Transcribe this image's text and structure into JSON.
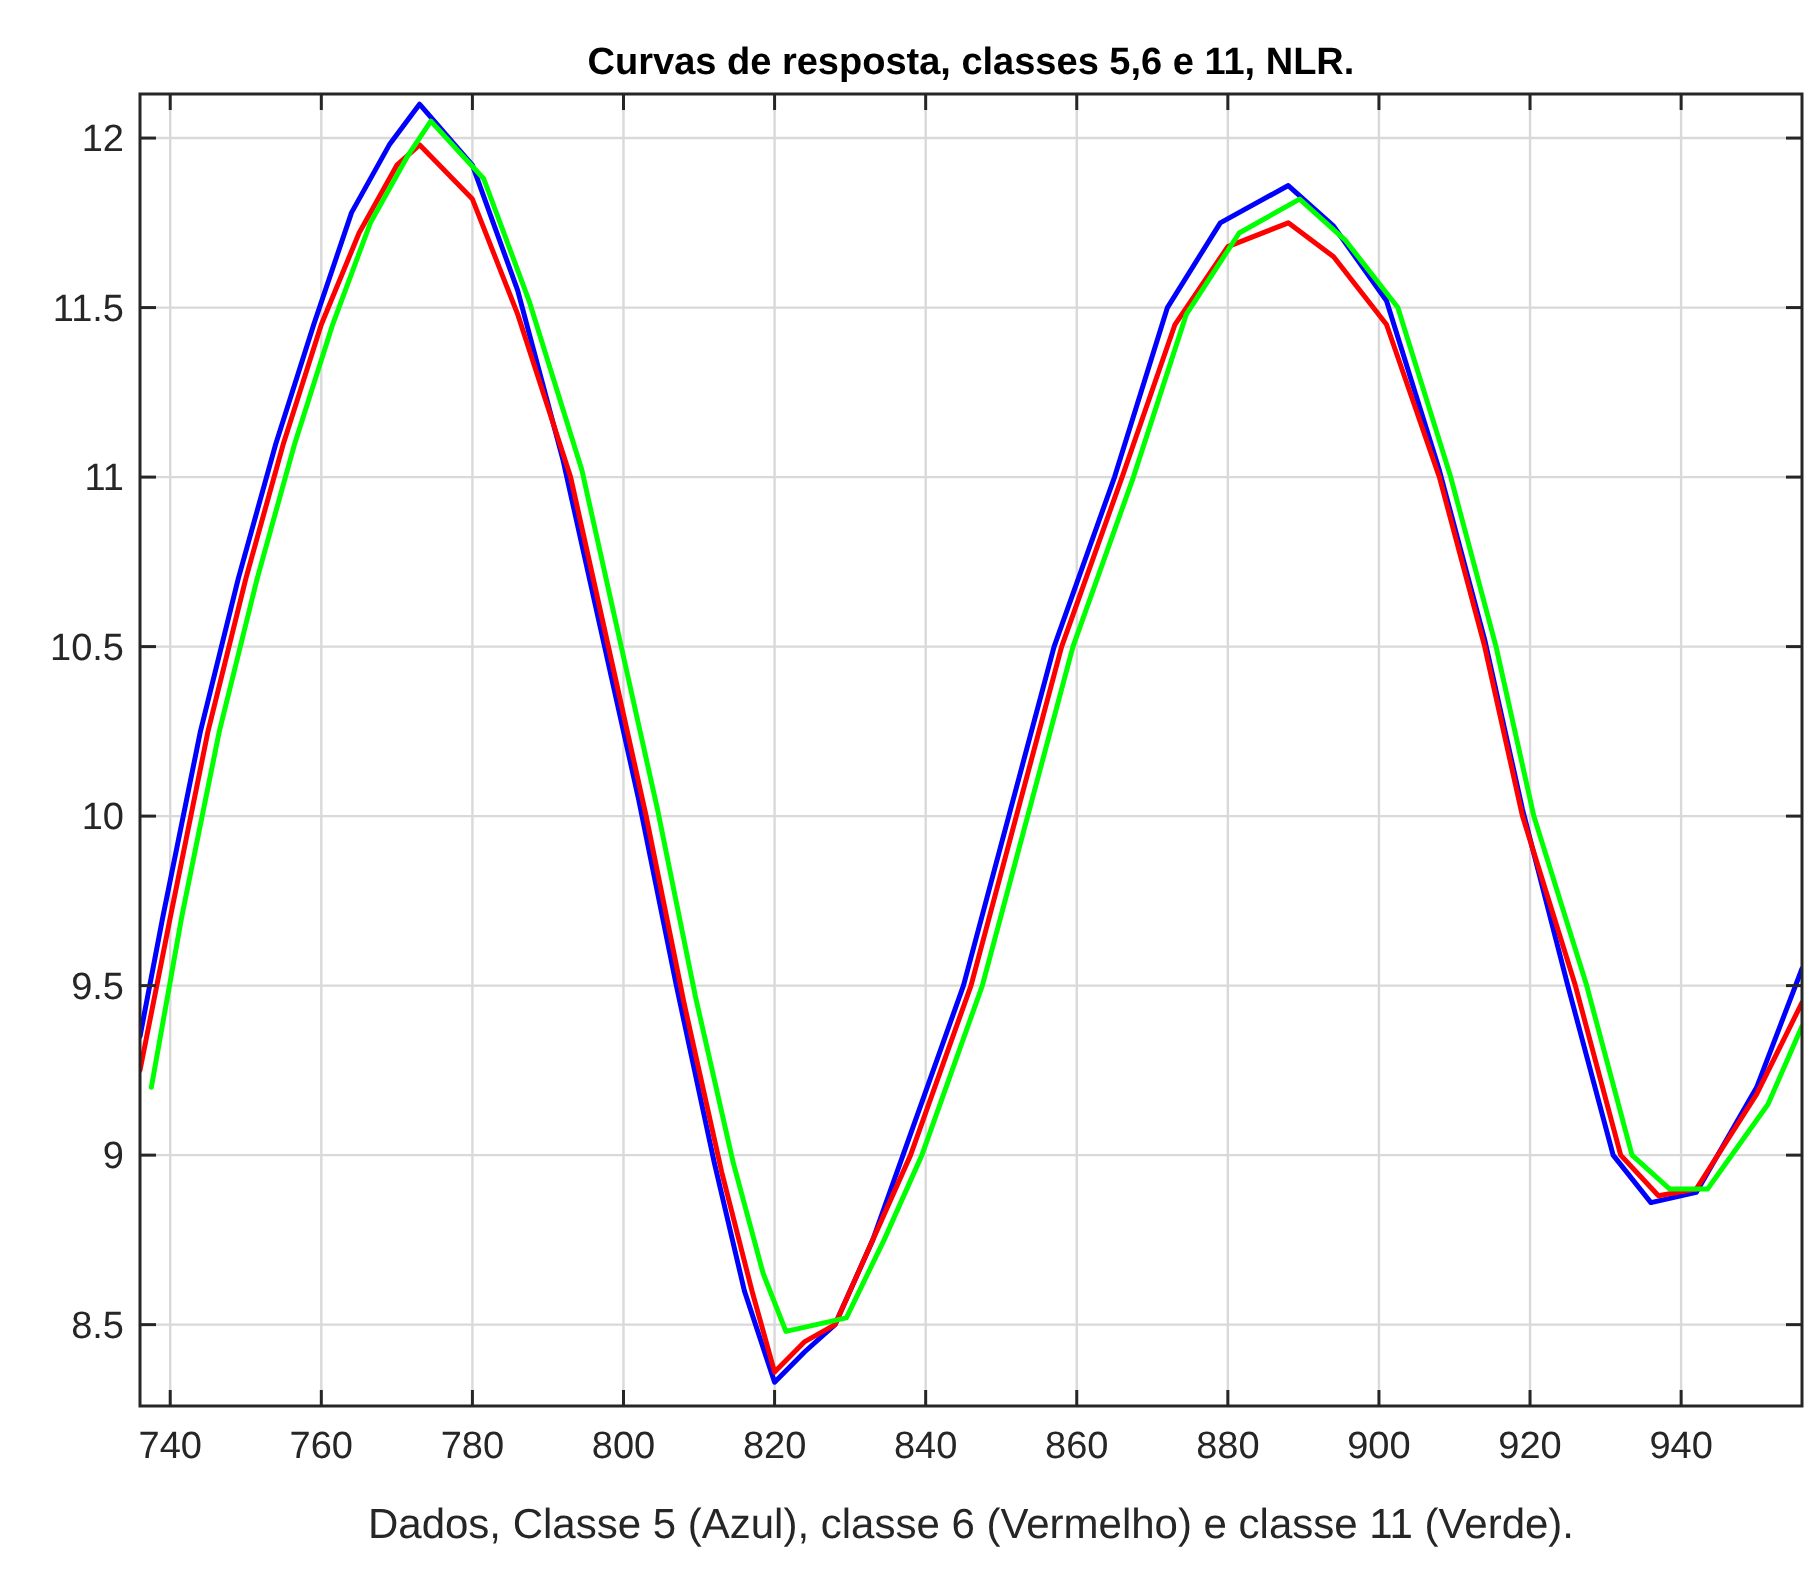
{
  "chart_data": {
    "type": "line",
    "title": "Curvas de resposta, classes 5,6 e 11, NLR.",
    "xlabel": "Dados, Classe 5 (Azul), classe 6 (Vermelho) e classe 11 (Verde).",
    "xlim": [
      736,
      956
    ],
    "ylim": [
      8.26,
      12.13
    ],
    "xticks": [
      740,
      760,
      780,
      800,
      820,
      840,
      860,
      880,
      900,
      920,
      940
    ],
    "yticks": [
      8.5,
      9,
      9.5,
      10,
      10.5,
      11,
      11.5,
      12
    ],
    "grid": true,
    "marker": "none",
    "line_style": "solid",
    "series": [
      {
        "color": "#0000ff",
        "x": [
          736,
          739,
          744,
          749,
          754,
          759,
          764,
          769,
          773,
          780,
          786,
          792,
          797,
          802,
          807,
          812,
          816,
          820,
          824,
          828,
          833,
          837,
          845,
          851,
          857,
          865,
          872,
          879,
          888,
          894,
          901,
          908,
          914,
          919,
          925,
          931,
          936,
          942,
          950,
          956
        ],
        "values": [
          9.35,
          9.7,
          10.25,
          10.7,
          11.1,
          11.45,
          11.78,
          11.98,
          12.1,
          11.92,
          11.55,
          11.05,
          10.55,
          10.05,
          9.5,
          8.98,
          8.6,
          8.33,
          8.42,
          8.5,
          8.75,
          9.0,
          9.5,
          10.0,
          10.5,
          11.0,
          11.5,
          11.75,
          11.86,
          11.74,
          11.52,
          11.02,
          10.52,
          10.02,
          9.5,
          9.0,
          8.86,
          8.89,
          9.2,
          9.55
        ]
      },
      {
        "color": "#ff0000",
        "x": [
          736,
          740,
          745,
          750,
          755,
          760,
          765,
          770,
          773,
          780,
          786,
          793,
          798,
          803,
          808,
          813,
          817,
          820,
          824,
          828,
          833,
          838,
          846,
          852,
          858,
          866,
          873,
          880,
          888,
          894,
          901,
          908,
          914,
          919,
          926,
          932,
          937,
          942,
          950,
          956
        ],
        "values": [
          9.25,
          9.7,
          10.25,
          10.7,
          11.1,
          11.45,
          11.72,
          11.92,
          11.98,
          11.82,
          11.48,
          11.0,
          10.5,
          10.0,
          9.45,
          8.95,
          8.6,
          8.36,
          8.45,
          8.5,
          8.75,
          9.0,
          9.5,
          10.0,
          10.5,
          11.0,
          11.45,
          11.68,
          11.75,
          11.65,
          11.45,
          11.0,
          10.5,
          10.0,
          9.5,
          9.0,
          8.88,
          8.9,
          9.18,
          9.45
        ]
      },
      {
        "color": "#00ff00",
        "x": [
          737.5,
          741.5,
          746.5,
          751.5,
          756.5,
          761.5,
          766.5,
          771.5,
          774.5,
          781.5,
          787.5,
          794.5,
          799.5,
          804.5,
          809.5,
          814.5,
          818.5,
          821.5,
          825.5,
          829.5,
          834.5,
          839.5,
          847.5,
          853.5,
          859.5,
          867.5,
          874.5,
          881.5,
          889.5,
          895.5,
          902.5,
          909.5,
          915.5,
          920.5,
          927.5,
          933.5,
          938.5,
          943.5,
          951.5,
          956
        ],
        "values": [
          9.2,
          9.7,
          10.25,
          10.7,
          11.1,
          11.45,
          11.75,
          11.95,
          12.05,
          11.88,
          11.52,
          11.02,
          10.52,
          10.02,
          9.47,
          8.98,
          8.65,
          8.48,
          8.5,
          8.52,
          8.75,
          9.0,
          9.5,
          10.0,
          10.5,
          11.0,
          11.48,
          11.72,
          11.82,
          11.7,
          11.5,
          11.0,
          10.5,
          10.0,
          9.5,
          9.0,
          8.9,
          8.9,
          9.15,
          9.38
        ]
      }
    ]
  }
}
